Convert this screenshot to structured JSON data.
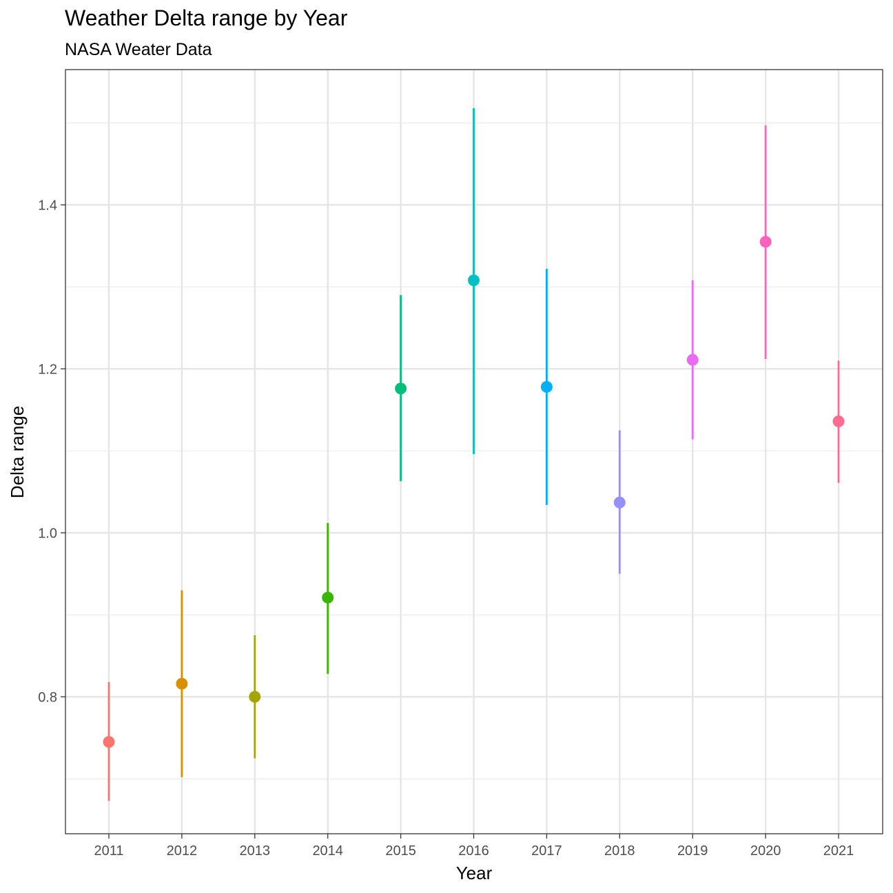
{
  "chart_data": {
    "type": "scatter",
    "title": "Weather Delta range by Year",
    "subtitle": "NASA Weater Data",
    "xlabel": "Year",
    "ylabel": "Delta range",
    "categories": [
      "2011",
      "2012",
      "2013",
      "2014",
      "2015",
      "2016",
      "2017",
      "2018",
      "2019",
      "2020",
      "2021"
    ],
    "values": [
      0.745,
      0.816,
      0.8,
      0.921,
      1.176,
      1.308,
      1.178,
      1.037,
      1.211,
      1.355,
      1.136
    ],
    "lower": [
      0.673,
      0.702,
      0.725,
      0.828,
      1.063,
      1.096,
      1.034,
      0.95,
      1.114,
      1.212,
      1.061
    ],
    "upper": [
      0.818,
      0.93,
      0.875,
      1.012,
      1.29,
      1.518,
      1.322,
      1.125,
      1.308,
      1.497,
      1.21
    ],
    "colors": [
      "#F8766D",
      "#D89000",
      "#A3A500",
      "#39B600",
      "#00BF7D",
      "#00BFC4",
      "#00B0F6",
      "#9590FF",
      "#E76BF3",
      "#FF62BC",
      "#FF6C91"
    ],
    "ylim": [
      0.633,
      1.565
    ],
    "yticks": [
      "0.8",
      "1.0",
      "1.2",
      "1.4"
    ],
    "grid": true,
    "legend": "none"
  }
}
